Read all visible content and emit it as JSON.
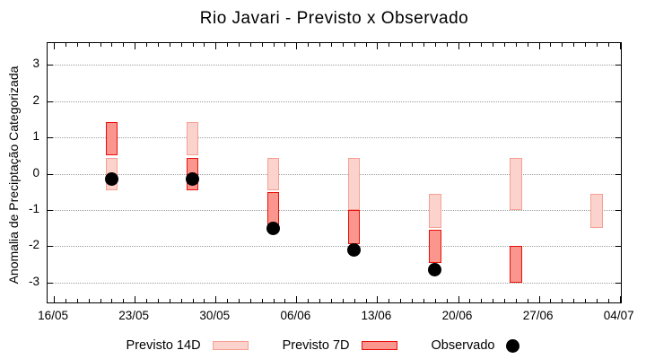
{
  "title": "Rio Javari - Previsto x Observado",
  "ylabel": "Anomalia de Preciptação Categorizada",
  "legend": [
    {
      "label": "Previsto 14D",
      "type": "box",
      "fill": "#fbd3cc",
      "border": "#f5a093"
    },
    {
      "label": "Previsto 7D",
      "type": "box",
      "fill": "#fa968e",
      "border": "#e8110a"
    },
    {
      "label": "Observado",
      "type": "dot",
      "fill": "#000000"
    }
  ],
  "style": {
    "previsto_14d_fill": "#fbd3cc",
    "previsto_14d_border": "#f5a093",
    "previsto_7d_fill": "#fa968e",
    "previsto_7d_border": "#e8110a",
    "observado_color": "#000000",
    "grid_color": "#9e9e9e",
    "axis_color": "#000000"
  },
  "chart_data": {
    "type": "bar",
    "subtype": "floating-range-bars-with-observed-points",
    "title": "Rio Javari - Previsto x Observado",
    "xlabel": "",
    "ylabel": "Anomalia de Preciptação Categorizada",
    "x_axis": {
      "tick_days": [
        0,
        7,
        14,
        21,
        28,
        35,
        42,
        49
      ],
      "tick_labels": [
        "16/05",
        "23/05",
        "30/05",
        "06/06",
        "13/06",
        "20/06",
        "27/06",
        "04/07"
      ],
      "minor_tick_every_days": 1,
      "range_days": [
        -0.55,
        49.1
      ]
    },
    "y_axis": {
      "ticks": [
        -3,
        -2,
        -1,
        0,
        1,
        2,
        3
      ],
      "tick_labels": [
        "-3",
        "-2",
        "-1",
        "0",
        "1",
        "2",
        "3"
      ],
      "range": [
        -3.55,
        3.6
      ],
      "grid": "dotted horizontal"
    },
    "bar_width_days": 1.05,
    "groups": [
      {
        "date": "21/05",
        "day": 5,
        "previsto_14d": [
          -0.45,
          0.43
        ],
        "previsto_7d": [
          0.5,
          1.43
        ],
        "observado": -0.15
      },
      {
        "date": "28/05",
        "day": 12,
        "previsto_14d": [
          0.5,
          1.43
        ],
        "previsto_7d": [
          -0.45,
          0.43
        ],
        "observado": -0.15
      },
      {
        "date": "04/06",
        "day": 19,
        "previsto_14d": [
          -0.45,
          0.43
        ],
        "previsto_7d": [
          -1.43,
          -0.5
        ],
        "observado": -1.5
      },
      {
        "date": "11/06",
        "day": 26,
        "previsto_14d": [
          -1.0,
          0.43
        ],
        "previsto_7d": [
          -1.95,
          -1.0
        ],
        "observado": -2.1
      },
      {
        "date": "18/06",
        "day": 33,
        "previsto_14d": [
          -1.5,
          -0.55
        ],
        "previsto_7d": [
          -2.45,
          -1.55
        ],
        "observado": -2.65
      },
      {
        "date": "25/06",
        "day": 40,
        "previsto_14d": [
          -1.0,
          0.43
        ],
        "previsto_7d": [
          -3.0,
          -2.0
        ],
        "observado": null
      },
      {
        "date": "02/07",
        "day": 47,
        "previsto_14d": [
          -1.5,
          -0.55
        ],
        "previsto_7d": null,
        "observado": null
      }
    ],
    "legend_entries": [
      "Previsto 14D",
      "Previsto 7D",
      "Observado"
    ],
    "legend_position": "bottom-center"
  }
}
